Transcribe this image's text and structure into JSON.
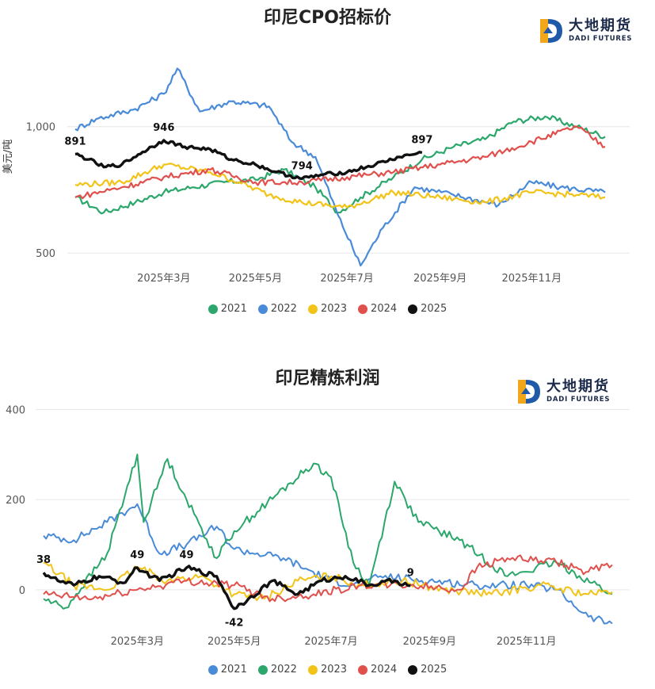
{
  "watermark": {
    "cn": "大地期货",
    "en": "DADI FUTURES"
  },
  "chart_data": [
    {
      "type": "line",
      "title": "印尼CPO招标价",
      "ylabel": "美元/吨",
      "ylim": [
        450,
        1250
      ],
      "yticks": [
        500,
        1000
      ],
      "ytick_labels": [
        "500",
        "1,000"
      ],
      "xlim": [
        "2025-01-01",
        "2025-12-31"
      ],
      "xtick_labels": [
        "2025年3月",
        "2025年5月",
        "2025年7月",
        "2025年9月",
        "2025年11月"
      ],
      "xtick_dates": [
        "2025-03-01",
        "2025-05-01",
        "2025-07-01",
        "2025-09-01",
        "2025-11-01"
      ],
      "legend": "bottom",
      "grid": true,
      "series": [
        {
          "name": "2021",
          "color": "#2ca76b",
          "x": [
            "2025-01-01",
            "2025-01-20",
            "2025-02-10",
            "2025-03-01",
            "2025-03-20",
            "2025-04-10",
            "2025-05-01",
            "2025-05-20",
            "2025-06-10",
            "2025-06-25",
            "2025-07-10",
            "2025-08-01",
            "2025-08-20",
            "2025-09-10",
            "2025-10-01",
            "2025-10-20",
            "2025-11-10",
            "2025-12-01",
            "2025-12-20"
          ],
          "values": [
            720,
            660,
            700,
            740,
            760,
            780,
            790,
            830,
            760,
            660,
            720,
            800,
            870,
            920,
            950,
            1020,
            1040,
            1000,
            960
          ]
        },
        {
          "name": "2022",
          "color": "#4a8bd8",
          "x": [
            "2025-01-01",
            "2025-01-15",
            "2025-02-10",
            "2025-03-01",
            "2025-03-10",
            "2025-03-25",
            "2025-04-15",
            "2025-05-10",
            "2025-05-25",
            "2025-06-10",
            "2025-06-25",
            "2025-07-10",
            "2025-07-25",
            "2025-08-15",
            "2025-09-10",
            "2025-10-10",
            "2025-11-01",
            "2025-11-20",
            "2025-12-20"
          ],
          "values": [
            990,
            1030,
            1070,
            1130,
            1230,
            1060,
            1100,
            1080,
            940,
            880,
            650,
            450,
            600,
            760,
            730,
            690,
            780,
            760,
            740
          ]
        },
        {
          "name": "2023",
          "color": "#f2c318",
          "x": [
            "2025-01-01",
            "2025-02-01",
            "2025-03-01",
            "2025-04-01",
            "2025-04-20",
            "2025-05-10",
            "2025-06-01",
            "2025-07-01",
            "2025-08-01",
            "2025-09-01",
            "2025-10-01",
            "2025-11-01",
            "2025-12-01",
            "2025-12-20"
          ],
          "values": [
            770,
            780,
            850,
            820,
            780,
            730,
            700,
            680,
            740,
            720,
            700,
            740,
            730,
            720
          ]
        },
        {
          "name": "2024",
          "color": "#e0504d",
          "x": [
            "2025-01-01",
            "2025-02-01",
            "2025-03-01",
            "2025-04-01",
            "2025-05-01",
            "2025-06-01",
            "2025-07-01",
            "2025-08-01",
            "2025-09-01",
            "2025-10-01",
            "2025-11-01",
            "2025-12-01",
            "2025-12-20"
          ],
          "values": [
            720,
            760,
            800,
            830,
            780,
            780,
            800,
            820,
            850,
            880,
            940,
            1000,
            920
          ]
        },
        {
          "name": "2025",
          "color": "#111111",
          "x": [
            "2025-01-01",
            "2025-01-10",
            "2025-01-20",
            "2025-02-01",
            "2025-02-15",
            "2025-03-01",
            "2025-03-15",
            "2025-04-01",
            "2025-04-15",
            "2025-05-01",
            "2025-05-15",
            "2025-06-01",
            "2025-06-15",
            "2025-07-01",
            "2025-07-20",
            "2025-08-05",
            "2025-08-20"
          ],
          "values": [
            891,
            870,
            840,
            850,
            900,
            946,
            920,
            910,
            870,
            850,
            820,
            794,
            810,
            820,
            850,
            880,
            897
          ]
        }
      ],
      "annotations": [
        {
          "label": "891",
          "x": "2025-01-01",
          "y": 891
        },
        {
          "label": "946",
          "x": "2025-03-01",
          "y": 946
        },
        {
          "label": "794",
          "x": "2025-06-01",
          "y": 794
        },
        {
          "label": "897",
          "x": "2025-08-20",
          "y": 897
        }
      ]
    },
    {
      "type": "line",
      "title": "印尼精炼利润",
      "ylabel": "",
      "ylim": [
        -90,
        420
      ],
      "yticks": [
        0,
        200,
        400
      ],
      "ytick_labels": [
        "0",
        "200",
        "400"
      ],
      "xlim": [
        "2025-01-01",
        "2025-12-31"
      ],
      "xtick_labels": [
        "2025年3月",
        "2025年5月",
        "2025年7月",
        "2025年9月",
        "2025年11月"
      ],
      "xtick_dates": [
        "2025-03-01",
        "2025-05-01",
        "2025-07-01",
        "2025-09-01",
        "2025-11-01"
      ],
      "legend": "bottom",
      "grid": true,
      "series": [
        {
          "name": "2021",
          "color": "#4a8bd8",
          "x": [
            "2025-01-01",
            "2025-01-20",
            "2025-02-10",
            "2025-03-01",
            "2025-03-15",
            "2025-04-01",
            "2025-04-20",
            "2025-05-01",
            "2025-06-01",
            "2025-07-01",
            "2025-07-20",
            "2025-08-01",
            "2025-09-01",
            "2025-10-01",
            "2025-11-01",
            "2025-11-20",
            "2025-12-10",
            "2025-12-25"
          ],
          "values": [
            120,
            110,
            150,
            190,
            80,
            100,
            140,
            90,
            70,
            20,
            10,
            30,
            20,
            10,
            10,
            0,
            -60,
            -75
          ]
        },
        {
          "name": "2022",
          "color": "#2ca76b",
          "x": [
            "2025-01-01",
            "2025-01-15",
            "2025-02-10",
            "2025-03-01",
            "2025-03-05",
            "2025-03-20",
            "2025-04-01",
            "2025-04-20",
            "2025-05-01",
            "2025-06-20",
            "2025-07-01",
            "2025-07-15",
            "2025-07-25",
            "2025-08-10",
            "2025-08-25",
            "2025-09-20",
            "2025-10-20",
            "2025-11-20",
            "2025-12-25"
          ],
          "values": [
            -20,
            -40,
            80,
            300,
            150,
            290,
            200,
            70,
            130,
            280,
            250,
            60,
            10,
            240,
            150,
            110,
            30,
            60,
            -10
          ]
        },
        {
          "name": "2023",
          "color": "#f2c318",
          "x": [
            "2025-01-01",
            "2025-01-20",
            "2025-02-10",
            "2025-03-01",
            "2025-03-20",
            "2025-04-10",
            "2025-05-01",
            "2025-05-20",
            "2025-06-10",
            "2025-07-01",
            "2025-07-20",
            "2025-08-15",
            "2025-09-10",
            "2025-10-10",
            "2025-11-10",
            "2025-12-10",
            "2025-12-25"
          ],
          "values": [
            60,
            10,
            0,
            50,
            20,
            30,
            -10,
            -20,
            20,
            30,
            10,
            20,
            0,
            -10,
            10,
            -10,
            -5
          ]
        },
        {
          "name": "2024",
          "color": "#e0504d",
          "x": [
            "2025-01-01",
            "2025-02-01",
            "2025-03-01",
            "2025-04-01",
            "2025-05-01",
            "2025-05-25",
            "2025-06-20",
            "2025-07-20",
            "2025-08-20",
            "2025-09-20",
            "2025-10-01",
            "2025-10-20",
            "2025-11-20",
            "2025-12-10",
            "2025-12-25"
          ],
          "values": [
            -10,
            -20,
            0,
            20,
            10,
            -20,
            -10,
            10,
            10,
            0,
            50,
            70,
            60,
            40,
            55
          ]
        },
        {
          "name": "2025",
          "color": "#111111",
          "x": [
            "2025-01-01",
            "2025-01-10",
            "2025-01-20",
            "2025-02-05",
            "2025-02-20",
            "2025-03-01",
            "2025-03-15",
            "2025-04-01",
            "2025-04-20",
            "2025-05-01",
            "2025-05-10",
            "2025-05-25",
            "2025-06-10",
            "2025-06-25",
            "2025-07-10",
            "2025-07-25",
            "2025-08-10",
            "2025-08-20"
          ],
          "values": [
            38,
            20,
            10,
            30,
            15,
            49,
            20,
            49,
            30,
            -42,
            -20,
            20,
            -10,
            20,
            30,
            10,
            20,
            9
          ]
        }
      ],
      "annotations": [
        {
          "label": "38",
          "x": "2025-01-01",
          "y": 38
        },
        {
          "label": "49",
          "x": "2025-03-01",
          "y": 49
        },
        {
          "label": "49",
          "x": "2025-04-01",
          "y": 49
        },
        {
          "label": "-42",
          "x": "2025-05-01",
          "y": -42
        },
        {
          "label": "9",
          "x": "2025-08-20",
          "y": 9
        }
      ]
    }
  ]
}
